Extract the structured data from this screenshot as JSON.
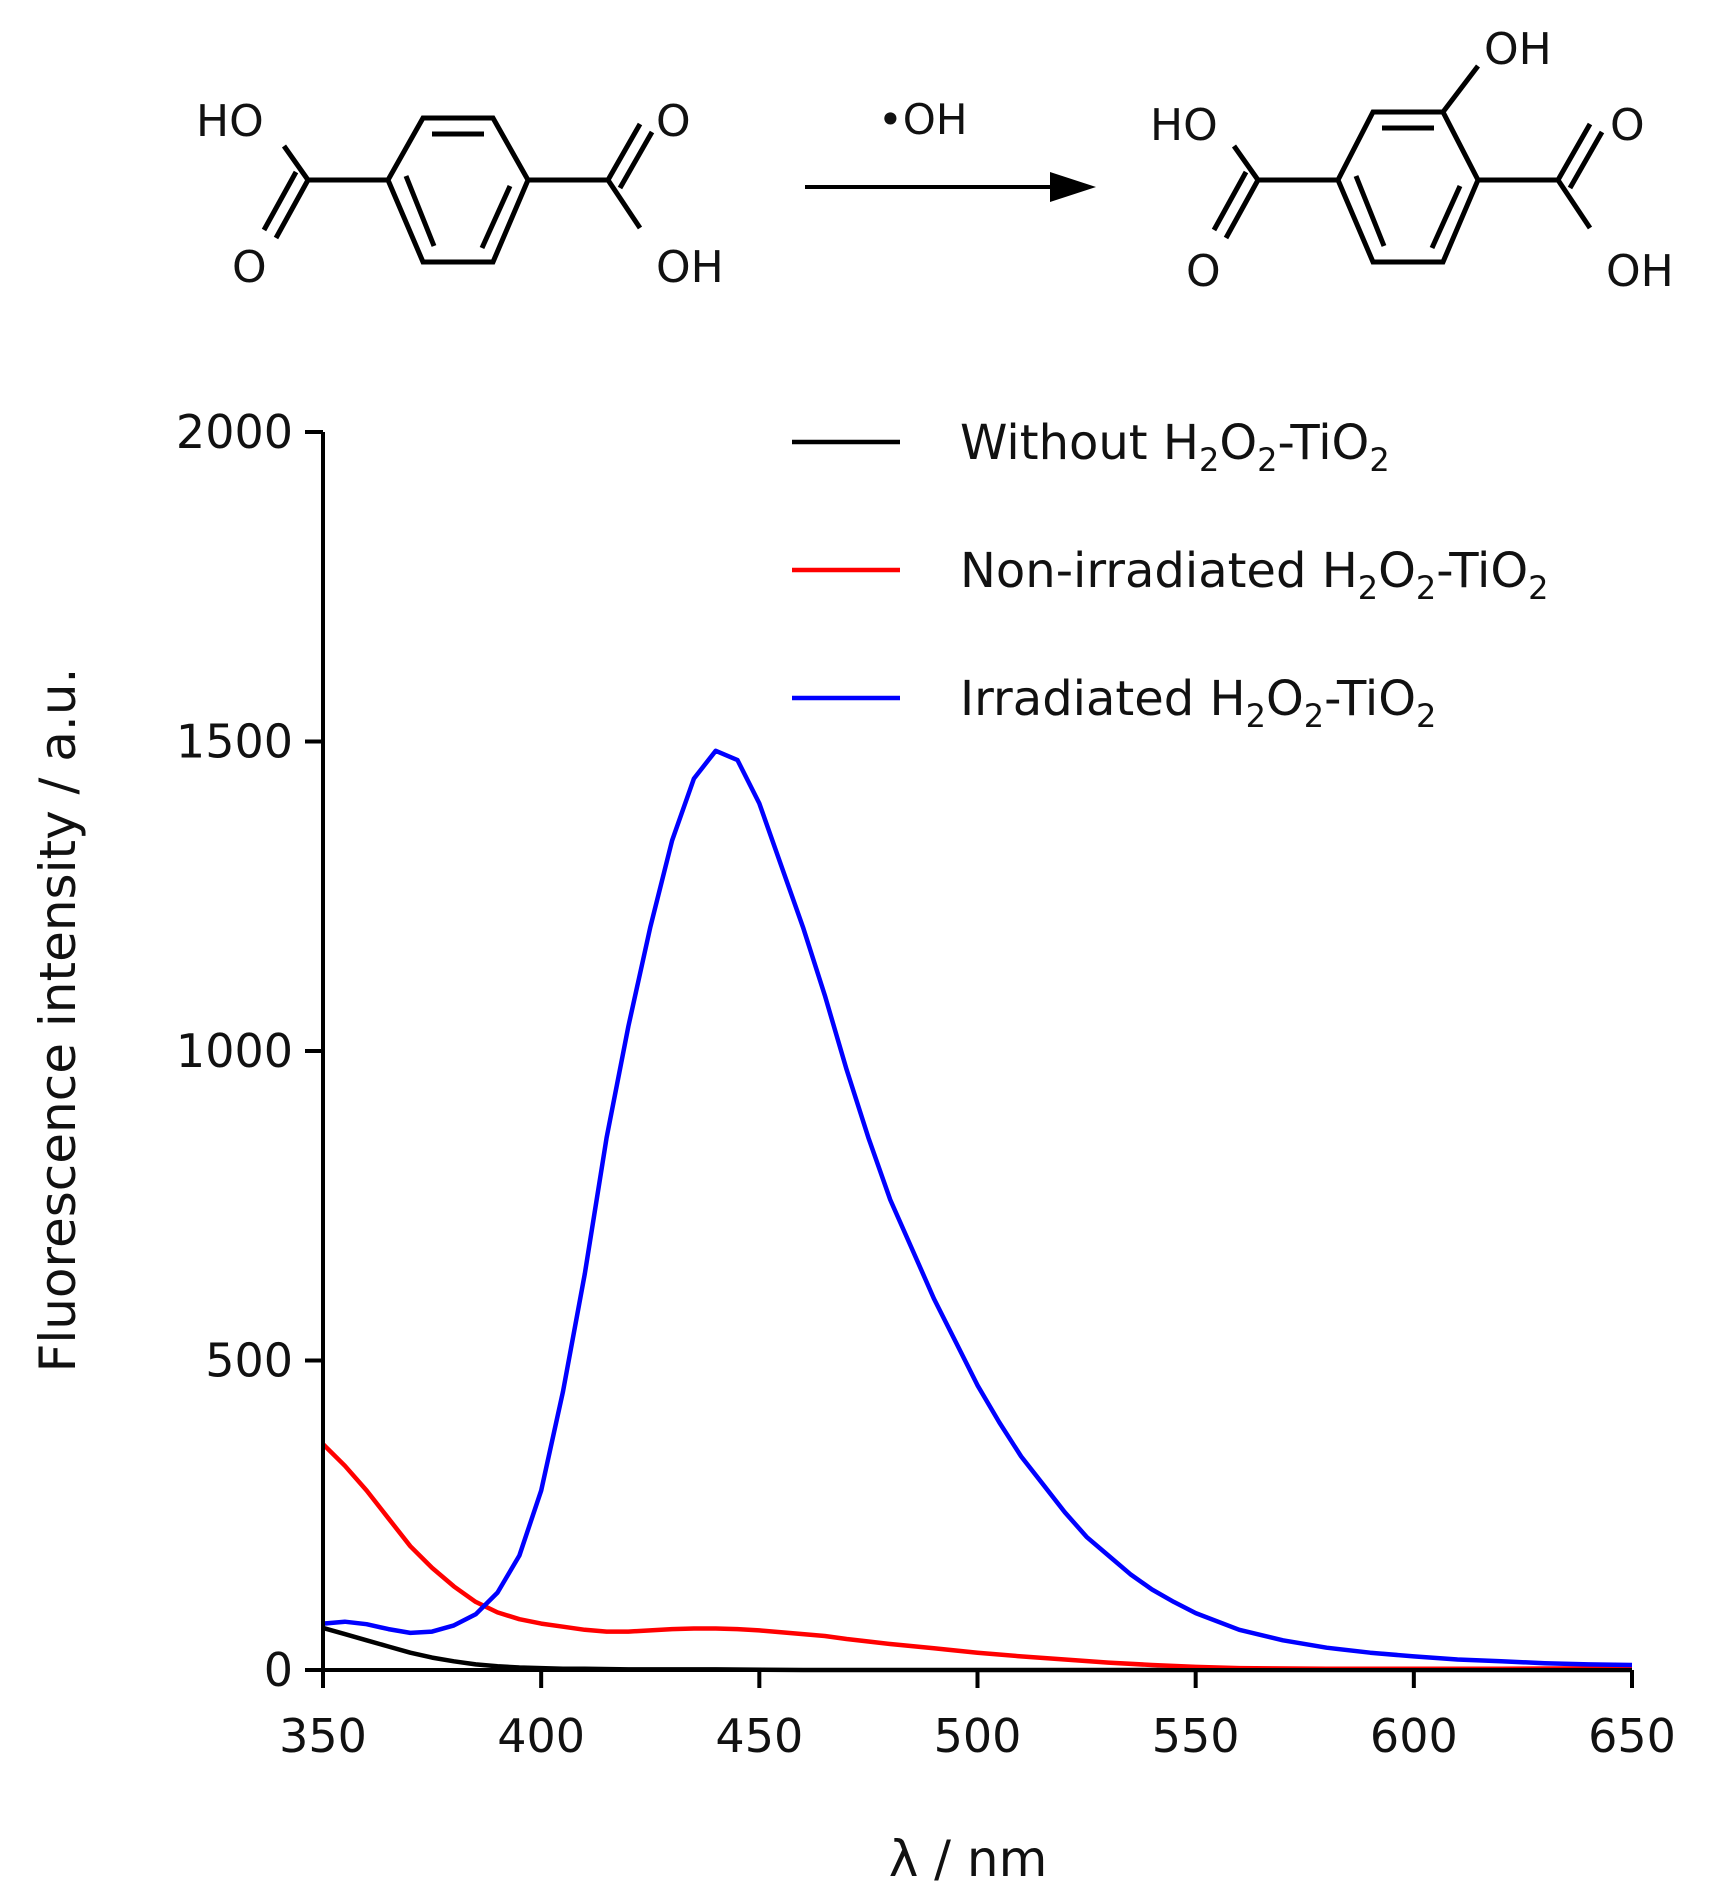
{
  "reaction": {
    "reagent": "•OH",
    "reactant": {
      "hydroxyl_left": "HO",
      "carbonyl_left": "O",
      "carbonyl_right": "O",
      "hydroxyl_right": "OH"
    },
    "product": {
      "hydroxyl_left": "HO",
      "carbonyl_left": "O",
      "ring_hydroxyl": "OH",
      "carbonyl_right": "O",
      "hydroxyl_right": "OH"
    }
  },
  "chart_data": {
    "type": "line",
    "title": "",
    "xlabel": "λ / nm",
    "ylabel": "Fluorescence intensity / a.u.",
    "xlim": [
      350,
      650
    ],
    "ylim": [
      0,
      2000
    ],
    "xticks": [
      350,
      400,
      450,
      500,
      550,
      600,
      650
    ],
    "yticks": [
      0,
      500,
      1000,
      1500,
      2000
    ],
    "grid": false,
    "legend_position": "top-right",
    "series": [
      {
        "name": "Without H2O2-TiO2",
        "legend": {
          "pre": "Without H",
          "sub1": "2",
          "mid": "O",
          "sub2": "2",
          "post": "-TiO",
          "sub3": "2"
        },
        "color": "#000000",
        "x": [
          350,
          355,
          360,
          365,
          370,
          375,
          380,
          385,
          390,
          395,
          400,
          405,
          410,
          420,
          440,
          460,
          500,
          550,
          600,
          650
        ],
        "y": [
          68,
          58,
          48,
          38,
          28,
          20,
          14,
          9,
          6,
          4,
          3,
          2,
          2,
          1,
          1,
          0,
          0,
          0,
          0,
          0
        ]
      },
      {
        "name": "Non-irradiated H2O2-TiO2",
        "legend": {
          "pre": "Non-irradiated H",
          "sub1": "2",
          "mid": "O",
          "sub2": "2",
          "post": "-TiO",
          "sub3": "2"
        },
        "color": "#ff0000",
        "x": [
          350,
          355,
          360,
          365,
          370,
          375,
          380,
          385,
          390,
          395,
          400,
          405,
          410,
          415,
          420,
          425,
          430,
          435,
          440,
          445,
          450,
          455,
          460,
          465,
          470,
          475,
          480,
          490,
          500,
          510,
          520,
          530,
          540,
          550,
          560,
          580,
          600,
          620,
          650
        ],
        "y": [
          365,
          330,
          290,
          245,
          200,
          165,
          135,
          110,
          93,
          82,
          75,
          70,
          65,
          62,
          62,
          64,
          66,
          67,
          67,
          66,
          64,
          61,
          58,
          55,
          50,
          46,
          42,
          35,
          28,
          22,
          17,
          12,
          8,
          5,
          3,
          2,
          2,
          2,
          3
        ]
      },
      {
        "name": "Irradiated H2O2-TiO2",
        "legend": {
          "pre": "Irradiated H",
          "sub1": "2",
          "mid": "O",
          "sub2": "2",
          "post": "-TiO",
          "sub3": "2"
        },
        "color": "#0000ff",
        "x": [
          350,
          355,
          360,
          365,
          370,
          375,
          380,
          385,
          390,
          395,
          400,
          405,
          410,
          415,
          420,
          425,
          430,
          435,
          440,
          445,
          450,
          455,
          460,
          465,
          470,
          475,
          480,
          485,
          490,
          495,
          500,
          505,
          510,
          515,
          520,
          525,
          530,
          535,
          540,
          545,
          550,
          560,
          570,
          580,
          590,
          600,
          610,
          620,
          630,
          640,
          650
        ],
        "y": [
          75,
          78,
          74,
          66,
          60,
          62,
          72,
          90,
          125,
          185,
          290,
          450,
          640,
          860,
          1040,
          1200,
          1340,
          1440,
          1485,
          1470,
          1400,
          1300,
          1200,
          1090,
          970,
          860,
          760,
          680,
          600,
          530,
          460,
          400,
          345,
          300,
          255,
          215,
          185,
          155,
          130,
          110,
          92,
          65,
          48,
          36,
          28,
          22,
          17,
          14,
          11,
          9,
          8
        ]
      }
    ]
  }
}
